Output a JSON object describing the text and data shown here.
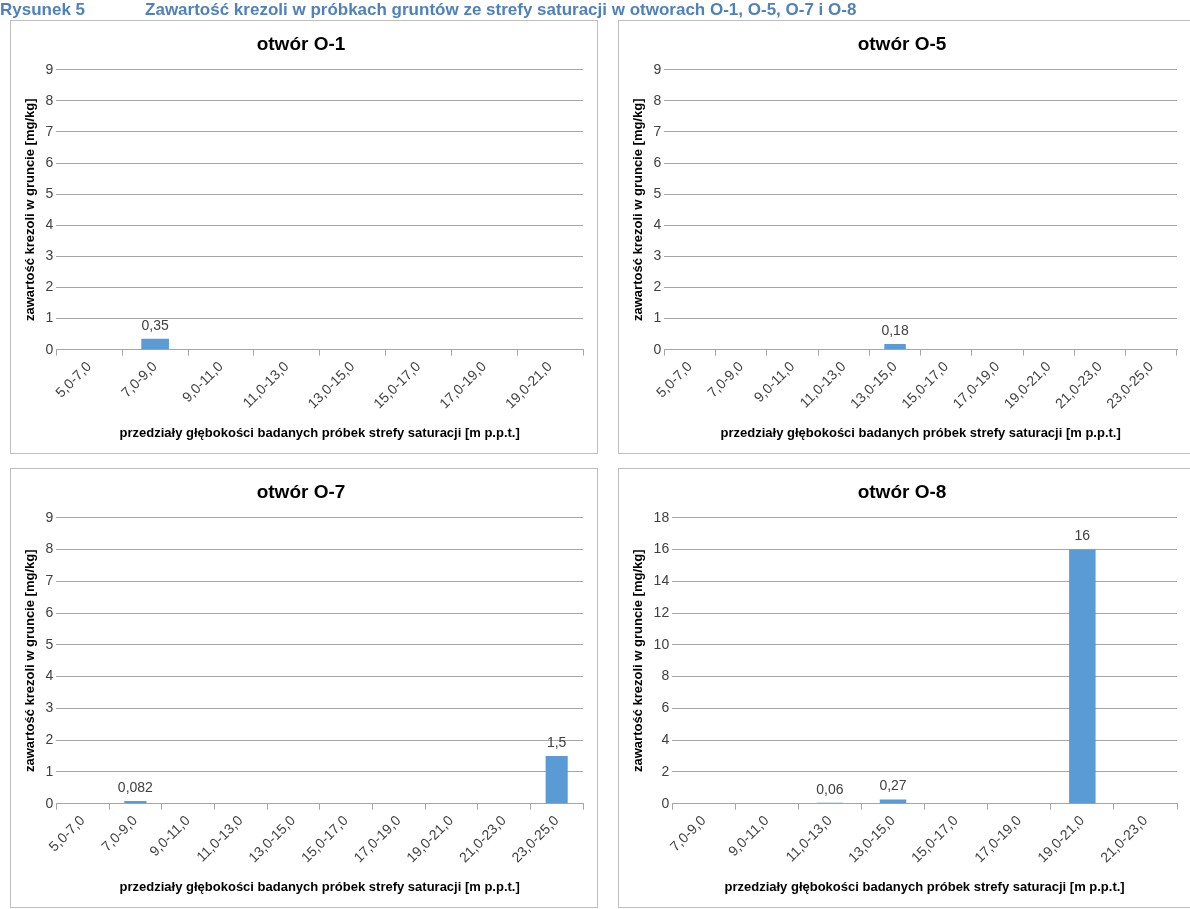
{
  "chart_data": [
    {
      "type": "other",
      "annotations": [
        "Rysunek 5",
        "Zawartość krezoli w próbkach gruntów ze strefy saturacji w otworach O-1, O-5, O-7 i O-8"
      ]
    },
    {
      "type": "bar",
      "title": "otwór O-1",
      "xlabel": "przedziały głębokości badanych próbek strefy saturacji [m p.p.t.]",
      "ylabel": "zawartość krezoli w gruncie [mg/kg]",
      "categories": [
        "5,0-7,0",
        "7,0-9,0",
        "9,0-11,0",
        "11,0-13,0",
        "13,0-15,0",
        "15,0-17,0",
        "17,0-19,0",
        "19,0-21,0"
      ],
      "values": [
        null,
        0.35,
        null,
        null,
        null,
        null,
        null,
        null
      ],
      "value_labels": [
        null,
        "0,35",
        null,
        null,
        null,
        null,
        null,
        null
      ],
      "color": "#5b9bd5",
      "ylim": [
        0,
        9
      ],
      "yticks": [
        0,
        1,
        2,
        3,
        4,
        5,
        6,
        7,
        8,
        9
      ],
      "grid": "y",
      "legend": false
    },
    {
      "type": "bar",
      "title": "otwór O-5",
      "xlabel": "przedziały głębokości badanych próbek strefy saturacji [m p.p.t.]",
      "ylabel": "zawartość krezoli w gruncie [mg/kg]",
      "categories": [
        "5,0-7,0",
        "7,0-9,0",
        "9,0-11,0",
        "11,0-13,0",
        "13,0-15,0",
        "15,0-17,0",
        "17,0-19,0",
        "19,0-21,0",
        "21,0-23,0",
        "23,0-25,0"
      ],
      "values": [
        null,
        null,
        null,
        null,
        0.18,
        null,
        null,
        null,
        null,
        null
      ],
      "value_labels": [
        null,
        null,
        null,
        null,
        "0,18",
        null,
        null,
        null,
        null,
        null
      ],
      "color": "#5b9bd5",
      "ylim": [
        0,
        9
      ],
      "yticks": [
        0,
        1,
        2,
        3,
        4,
        5,
        6,
        7,
        8,
        9
      ],
      "grid": "y",
      "legend": false
    },
    {
      "type": "bar",
      "title": "otwór O-7",
      "xlabel": "przedziały głębokości badanych próbek strefy saturacji [m p.p.t.]",
      "ylabel": "zawartość krezoli w gruncie [mg/kg]",
      "categories": [
        "5,0-7,0",
        "7,0-9,0",
        "9,0-11,0",
        "11,0-13,0",
        "13,0-15,0",
        "15,0-17,0",
        "17,0-19,0",
        "19,0-21,0",
        "21,0-23,0",
        "23,0-25,0"
      ],
      "values": [
        null,
        0.082,
        null,
        null,
        null,
        null,
        null,
        null,
        null,
        1.5
      ],
      "value_labels": [
        null,
        "0,082",
        null,
        null,
        null,
        null,
        null,
        null,
        null,
        "1,5"
      ],
      "color": "#5b9bd5",
      "ylim": [
        0,
        9
      ],
      "yticks": [
        0,
        1,
        2,
        3,
        4,
        5,
        6,
        7,
        8,
        9
      ],
      "grid": "y",
      "legend": false
    },
    {
      "type": "bar",
      "title": "otwór O-8",
      "xlabel": "przedziały głębokości badanych próbek strefy saturacji [m p.p.t.]",
      "ylabel": "zawartość krezoli w gruncie [mg/kg]",
      "categories": [
        "7,0-9,0",
        "9,0-11,0",
        "11,0-13,0",
        "13,0-15,0",
        "15,0-17,0",
        "17,0-19,0",
        "19,0-21,0",
        "21,0-23,0"
      ],
      "values": [
        null,
        null,
        0.06,
        0.27,
        null,
        null,
        16,
        null
      ],
      "value_labels": [
        null,
        null,
        "0,06",
        "0,27",
        null,
        null,
        "16",
        null
      ],
      "color": "#5b9bd5",
      "ylim": [
        0,
        18
      ],
      "yticks": [
        0,
        2,
        4,
        6,
        8,
        10,
        12,
        14,
        16,
        18
      ],
      "grid": "y",
      "legend": false
    }
  ]
}
